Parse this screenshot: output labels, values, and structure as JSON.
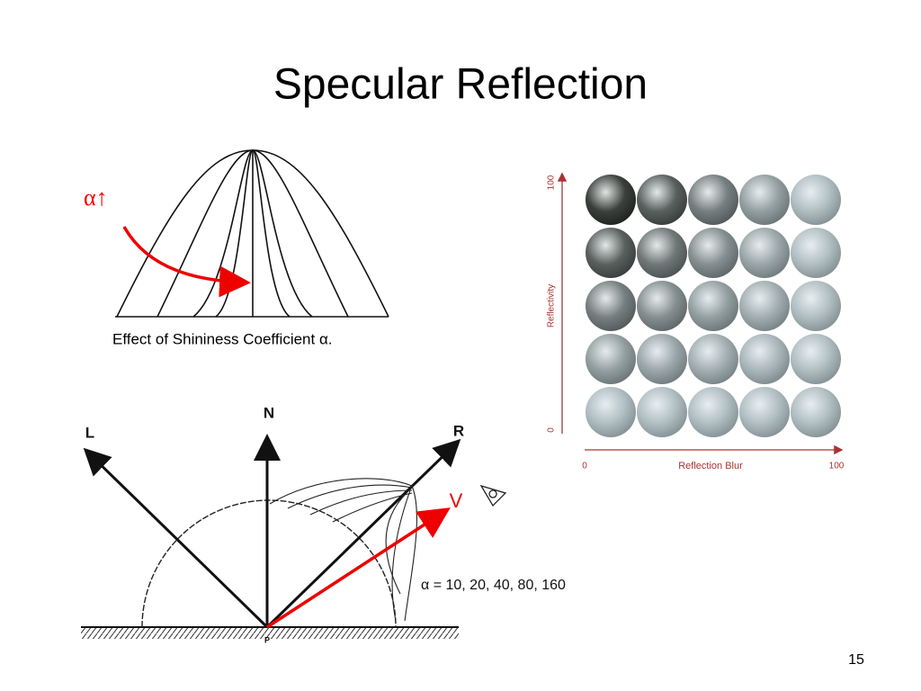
{
  "title": "Specular Reflection",
  "shininess_plot": {
    "label": "α↑",
    "caption": "Effect of Shininess Coefficient α."
  },
  "sphere_grid": {
    "y_axis": {
      "label": "Reflectivity",
      "max": "100",
      "min": "0"
    },
    "x_axis": {
      "label": "Reflection Blur",
      "min": "0",
      "max": "100"
    }
  },
  "reflection_diagram": {
    "light": "L",
    "normal": "N",
    "reflected": "R",
    "viewer": "V",
    "point": "P",
    "alpha_values": "α = 10, 20, 40, 80, 160"
  },
  "page_number": "15"
}
